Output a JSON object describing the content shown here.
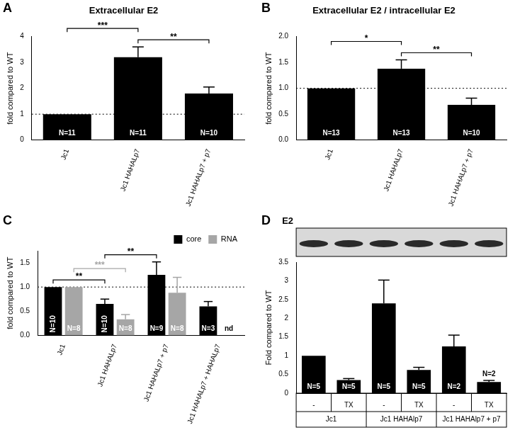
{
  "chart_data": [
    {
      "panel": "A",
      "type": "bar",
      "title": "Extracellular E2",
      "y_label": "fold compared to WT",
      "categories": [
        "Jc1",
        "Jc1 HAHALp7",
        "Jc1 HAHALp7 + p7"
      ],
      "values": [
        1,
        3.2,
        1.8
      ],
      "errors": [
        0,
        0.4,
        0.25
      ],
      "n_labels": [
        "N=11",
        "N=11",
        "N=10"
      ],
      "color": "#000000",
      "ylim": [
        0,
        4
      ],
      "yticks": [
        0,
        1,
        2,
        3,
        4
      ],
      "grid": false,
      "reference_line": 1,
      "significance": [
        {
          "from": "Jc1 HAHALp7",
          "to": "Jc1 HAHALp7 + p7",
          "label": "**"
        },
        {
          "from": "Jc1",
          "to": "Jc1 HAHALp7",
          "label": "***"
        }
      ]
    },
    {
      "panel": "B",
      "type": "bar",
      "title": "Extracellular E2 / intracellular E2",
      "y_label": "fold compared to WT",
      "categories": [
        "Jc1",
        "Jc1 HAHALp7",
        "Jc1 HAHALp7 + p7"
      ],
      "values": [
        1,
        1.38,
        0.68
      ],
      "errors": [
        0,
        0.17,
        0.13
      ],
      "n_labels": [
        "N=13",
        "N=13",
        "N=10"
      ],
      "color": "#000000",
      "ylim": [
        0,
        2
      ],
      "yticks": [
        {
          "value": 0,
          "label": "0.0"
        },
        {
          "value": 0.5,
          "label": "0.5"
        },
        {
          "value": 1,
          "label": "1.0"
        },
        {
          "value": 1.5,
          "label": "1.5"
        },
        {
          "value": 2,
          "label": "2.0"
        }
      ],
      "grid": false,
      "reference_line": 1,
      "significance": [
        {
          "from": "Jc1 HAHALp7",
          "to": "Jc1 HAHALp7 + p7",
          "label": "**"
        },
        {
          "from": "Jc1",
          "to": "Jc1 HAHALp7",
          "label": "*"
        }
      ]
    },
    {
      "panel": "C",
      "type": "bar",
      "y_label": "fold compared to WT",
      "categories": [
        "Jc1",
        "Jc1 HAHALp7",
        "Jc1 HAHALp7 + p7",
        "Jc1 HAHALp7 + HAHALp7"
      ],
      "series": [
        {
          "name": "core",
          "color": "#000000",
          "values": [
            1,
            0.65,
            1.25,
            0.6
          ],
          "errors": [
            0,
            0.1,
            0.27,
            0.1
          ],
          "n_labels": [
            "N=10",
            "N=10",
            "N=9",
            "N=3"
          ]
        },
        {
          "name": "RNA",
          "color": "#a6a6a6",
          "values": [
            1,
            0.33,
            0.88,
            null
          ],
          "errors": [
            0,
            0.1,
            0.32,
            null
          ],
          "n_labels": [
            "N=8",
            "N=8",
            "N=8",
            "nd"
          ]
        }
      ],
      "ylim": [
        0,
        1.75
      ],
      "yticks": [
        {
          "value": 0,
          "label": "0.0"
        },
        {
          "value": 0.5,
          "label": "0.5"
        },
        {
          "value": 1,
          "label": "1.0"
        },
        {
          "value": 1.5,
          "label": "1.5"
        }
      ],
      "grid": false,
      "legend": "upper right",
      "reference_line": 1,
      "significance": [
        {
          "series": "core",
          "from": "Jc1",
          "to": "Jc1 HAHALp7",
          "label": "**"
        },
        {
          "series": "RNA",
          "from": "Jc1",
          "to": "Jc1 HAHALp7",
          "label": "***"
        },
        {
          "series": "core",
          "from": "Jc1 HAHALp7",
          "to": "Jc1 HAHALp7 + p7",
          "label": "**"
        }
      ]
    },
    {
      "panel": "D",
      "type": "bar",
      "y_label": "Fold compared to WT",
      "blot_label": "E2",
      "categories": [
        "-",
        "TX",
        "-",
        "TX",
        "-",
        "TX"
      ],
      "groups": [
        "Jc1",
        "Jc1 HAHAlp7",
        "Jc1 HAHAlp7 + p7"
      ],
      "values": [
        1,
        0.35,
        2.4,
        0.62,
        1.25,
        0.3
      ],
      "errors": [
        0,
        0.04,
        0.62,
        0.07,
        0.3,
        0.04
      ],
      "n_labels": [
        "N=5",
        "N=5",
        "N=5",
        "N=5",
        "N=2",
        "N=2"
      ],
      "color": "#000000",
      "ylim": [
        0,
        3.5
      ],
      "yticks": [
        0,
        0.5,
        1,
        1.5,
        2,
        2.5,
        3,
        3.5
      ],
      "grid": false
    }
  ]
}
